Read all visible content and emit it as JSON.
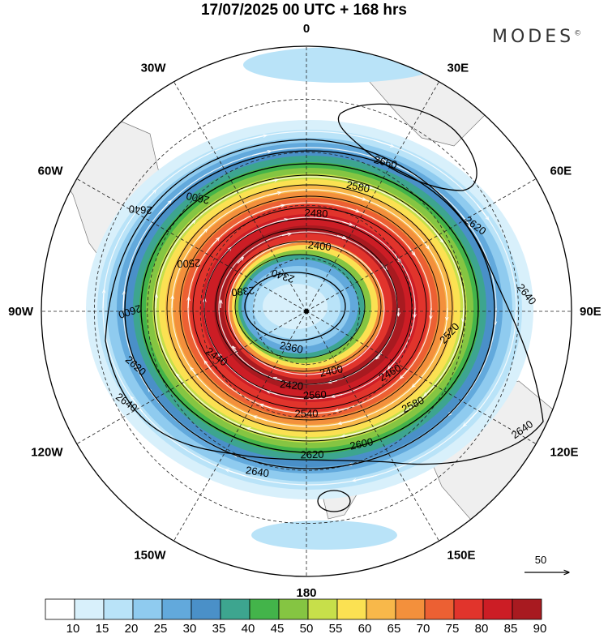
{
  "title": "17/07/2025  00 UTC  + 168 hrs",
  "brand": "MODES",
  "brand_mark": "©",
  "lon_labels": [
    {
      "text": "0",
      "angle": 0
    },
    {
      "text": "30E",
      "angle": 30
    },
    {
      "text": "60E",
      "angle": 60
    },
    {
      "text": "90E",
      "angle": 90
    },
    {
      "text": "120E",
      "angle": 120
    },
    {
      "text": "150E",
      "angle": 150
    },
    {
      "text": "180",
      "angle": 180
    },
    {
      "text": "150W",
      "angle": 210
    },
    {
      "text": "120W",
      "angle": 240
    },
    {
      "text": "90W",
      "angle": 270
    },
    {
      "text": "60W",
      "angle": 300
    },
    {
      "text": "30W",
      "angle": 330
    }
  ],
  "contour_labels": [
    {
      "text": "2340",
      "angle": 330,
      "frac": 0.18
    },
    {
      "text": "2360",
      "angle": 200,
      "frac": 0.17
    },
    {
      "text": "2380",
      "angle": 290,
      "frac": 0.26
    },
    {
      "text": "2400",
      "angle": 10,
      "frac": 0.29
    },
    {
      "text": "2400",
      "angle": 160,
      "frac": 0.28
    },
    {
      "text": "2420",
      "angle": 190,
      "frac": 0.33
    },
    {
      "text": "2440",
      "angle": 240,
      "frac": 0.4
    },
    {
      "text": "2460",
      "angle": 130,
      "frac": 0.42
    },
    {
      "text": "2480",
      "angle": 5,
      "frac": 0.43
    },
    {
      "text": "2500",
      "angle": 295,
      "frac": 0.5
    },
    {
      "text": "2520",
      "angle": 100,
      "frac": 0.56
    },
    {
      "text": "2540",
      "angle": 180,
      "frac": 0.45
    },
    {
      "text": "2560",
      "angle": 175,
      "frac": 0.37
    },
    {
      "text": "2580",
      "angle": 20,
      "frac": 0.58
    },
    {
      "text": "2580",
      "angle": 135,
      "frac": 0.58
    },
    {
      "text": "2600",
      "angle": 320,
      "frac": 0.65
    },
    {
      "text": "2600",
      "angle": 270,
      "frac": 0.68
    },
    {
      "text": "2600",
      "angle": 160,
      "frac": 0.62
    },
    {
      "text": "2620",
      "angle": 60,
      "frac": 0.75
    },
    {
      "text": "2620",
      "angle": 178,
      "frac": 0.63
    },
    {
      "text": "2620",
      "angle": 250,
      "frac": 0.7
    },
    {
      "text": "2640",
      "angle": 305,
      "frac": 0.78
    },
    {
      "text": "2640",
      "angle": 240,
      "frac": 0.8
    },
    {
      "text": "2640",
      "angle": 85,
      "frac": 0.85
    },
    {
      "text": "2640",
      "angle": 195,
      "frac": 0.73
    },
    {
      "text": "2640",
      "angle": 122,
      "frac": 0.98
    },
    {
      "text": "2660",
      "angle": 25,
      "frac": 0.72
    }
  ],
  "chart_data": {
    "type": "heatmap",
    "title": "17/07/2025  00 UTC  + 168 hrs",
    "projection": "polar-stereographic-south",
    "center_point": "south-pole",
    "fields": {
      "shaded": "wind speed",
      "contours": "geopotential height",
      "vectors": "wind direction streamlines"
    },
    "contour_levels": [
      2340,
      2360,
      2380,
      2400,
      2420,
      2440,
      2460,
      2480,
      2500,
      2520,
      2540,
      2560,
      2580,
      2600,
      2620,
      2640,
      2660
    ],
    "colorbar": {
      "levels": [
        10,
        15,
        20,
        25,
        30,
        35,
        40,
        45,
        50,
        55,
        60,
        65,
        70,
        75,
        80,
        85,
        90
      ],
      "colors": [
        "#ffffff",
        "#d8f0fb",
        "#b9e3f8",
        "#8fcbef",
        "#62a9dc",
        "#4a90c8",
        "#3da58f",
        "#43b44a",
        "#85c542",
        "#c7df4a",
        "#fbe152",
        "#f8b84a",
        "#f3903c",
        "#ec6033",
        "#e1342c",
        "#cc1d25",
        "#a81a20"
      ]
    },
    "reference_vector": {
      "label": "50"
    }
  }
}
